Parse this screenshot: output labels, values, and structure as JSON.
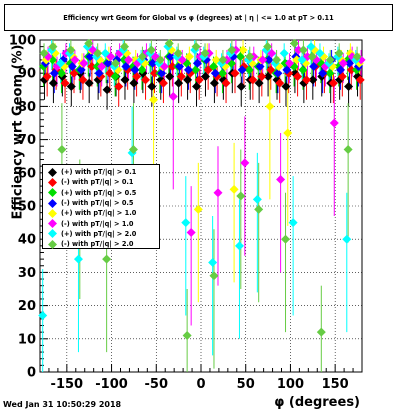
{
  "title": "Efficiency wrt Geom for Global vs φ (degrees) at | η | <= 1.0 at pT > 0.11",
  "footer": "Wed Jan 31 10:50:29 2018",
  "chart_data": {
    "type": "scatter",
    "title": "Efficiency wrt Geom for Global vs φ (degrees) at | η | <= 1.0 at pT > 0.11",
    "xlabel": "φ (degrees)",
    "ylabel": "Efficiency wrt Geom (%)",
    "xlim": [
      -180,
      180
    ],
    "ylim": [
      0,
      100
    ],
    "xticks": [
      -150,
      -100,
      -50,
      0,
      50,
      100,
      150
    ],
    "yticks": [
      0,
      10,
      20,
      30,
      40,
      50,
      60,
      70,
      80,
      90,
      100
    ],
    "grid": true,
    "legend_position": "middle-left",
    "series": [
      {
        "name": "(+) with pT/|q| > 0.1",
        "color": "#000000",
        "marker": "diamond",
        "x": [
          -175,
          -165,
          -155,
          -145,
          -135,
          -125,
          -115,
          -105,
          -95,
          -85,
          -75,
          -65,
          -55,
          -45,
          -35,
          -25,
          -15,
          -5,
          5,
          15,
          25,
          35,
          45,
          55,
          65,
          75,
          85,
          95,
          105,
          115,
          125,
          135,
          145,
          155,
          165,
          175
        ],
        "y": [
          88,
          87,
          89,
          86,
          90,
          87,
          88,
          85,
          89,
          88,
          87,
          90,
          86,
          88,
          89,
          87,
          88,
          86,
          89,
          87,
          88,
          90,
          86,
          88,
          87,
          89,
          88,
          86,
          90,
          87,
          88,
          89,
          87,
          88,
          86,
          89
        ]
      },
      {
        "name": "(-) with pT/|q| > 0.1",
        "color": "#ff0000",
        "marker": "diamond",
        "x": [
          -172,
          -162,
          -152,
          -142,
          -132,
          -122,
          -112,
          -102,
          -92,
          -82,
          -72,
          -62,
          -52,
          -42,
          -32,
          -22,
          -12,
          -2,
          8,
          18,
          28,
          38,
          48,
          58,
          68,
          78,
          88,
          98,
          108,
          118,
          128,
          138,
          148,
          158,
          168,
          178
        ],
        "y": [
          89,
          91,
          87,
          90,
          88,
          92,
          89,
          90,
          86,
          91,
          89,
          88,
          90,
          87,
          92,
          89,
          90,
          88,
          91,
          89,
          87,
          90,
          92,
          88,
          89,
          91,
          87,
          90,
          89,
          88,
          92,
          90,
          87,
          89,
          91,
          88
        ]
      },
      {
        "name": "(+) with pT/|q| > 0.5",
        "color": "#00dd00",
        "marker": "diamond",
        "x": [
          -176,
          -166,
          -156,
          -146,
          -136,
          -126,
          -116,
          -106,
          -96,
          -86,
          -76,
          -66,
          -56,
          -46,
          -36,
          -26,
          -16,
          -6,
          4,
          14,
          24,
          34,
          44,
          54,
          64,
          74,
          84,
          94,
          104,
          114,
          124,
          134,
          144,
          154,
          164,
          174
        ],
        "y": [
          92,
          94,
          90,
          93,
          91,
          95,
          92,
          93,
          89,
          94,
          92,
          91,
          93,
          90,
          95,
          92,
          93,
          91,
          94,
          92,
          90,
          93,
          95,
          91,
          92,
          94,
          90,
          93,
          92,
          91,
          95,
          93,
          90,
          92,
          94,
          91
        ]
      },
      {
        "name": "(-) with pT/|q| > 0.5",
        "color": "#0000ff",
        "marker": "diamond",
        "x": [
          -174,
          -164,
          -154,
          -144,
          -134,
          -124,
          -114,
          -104,
          -94,
          -84,
          -74,
          -64,
          -54,
          -44,
          -34,
          -24,
          -14,
          -4,
          6,
          16,
          26,
          36,
          46,
          56,
          66,
          76,
          86,
          96,
          106,
          116,
          126,
          136,
          146,
          156,
          166,
          176
        ],
        "y": [
          93,
          90,
          94,
          92,
          91,
          95,
          90,
          93,
          94,
          92,
          91,
          94,
          93,
          90,
          95,
          92,
          91,
          93,
          94,
          90,
          92,
          95,
          91,
          93,
          92,
          94,
          90,
          91,
          95,
          93,
          92,
          90,
          94,
          91,
          93,
          92
        ]
      },
      {
        "name": "(+) with pT/|q| > 1.0",
        "color": "#ffff00",
        "marker": "diamond",
        "x": [
          -173,
          -163,
          -153,
          -143,
          -133,
          -123,
          -113,
          -103,
          -93,
          -83,
          -73,
          -63,
          -53,
          -43,
          -33,
          -23,
          -13,
          -3,
          7,
          17,
          27,
          37,
          47,
          57,
          67,
          77,
          87,
          97,
          107,
          117,
          127,
          137,
          147,
          157,
          167,
          177
        ],
        "y": [
          94,
          96,
          92,
          95,
          93,
          97,
          94,
          95,
          91,
          96,
          94,
          93,
          82,
          92,
          97,
          94,
          95,
          49,
          96,
          94,
          92,
          55,
          97,
          93,
          94,
          80,
          92,
          72,
          94,
          93,
          97,
          95,
          92,
          94,
          96,
          93
        ]
      },
      {
        "name": "(-) with pT/|q| > 1.0",
        "color": "#ff00ff",
        "marker": "diamond",
        "x": [
          -171,
          -161,
          -151,
          -141,
          -131,
          -121,
          -111,
          -101,
          -91,
          -81,
          -71,
          -61,
          -51,
          -41,
          -31,
          -21,
          -11,
          -1,
          9,
          19,
          29,
          39,
          49,
          59,
          69,
          79,
          89,
          99,
          109,
          119,
          129,
          139,
          149,
          159,
          169,
          179
        ],
        "y": [
          95,
          92,
          96,
          94,
          93,
          97,
          92,
          95,
          96,
          94,
          93,
          96,
          95,
          92,
          83,
          94,
          42,
          95,
          96,
          54,
          94,
          97,
          63,
          95,
          94,
          96,
          58,
          93,
          97,
          95,
          94,
          92,
          75,
          93,
          95,
          94
        ]
      },
      {
        "name": "(+) with pT/|q| > 2.0",
        "color": "#00ffff",
        "marker": "diamond",
        "x": [
          -177,
          -167,
          -157,
          -147,
          -137,
          -127,
          -117,
          -107,
          -97,
          -87,
          -77,
          -67,
          -57,
          -47,
          -37,
          -27,
          -17,
          -7,
          3,
          13,
          23,
          33,
          43,
          53,
          63,
          73,
          83,
          93,
          103,
          113,
          123,
          133,
          143,
          153,
          163,
          173
        ],
        "y": [
          17,
          97,
          93,
          96,
          34,
          98,
          95,
          96,
          92,
          97,
          66,
          94,
          96,
          93,
          98,
          95,
          45,
          97,
          95,
          33,
          93,
          96,
          38,
          94,
          52,
          97,
          93,
          96,
          45,
          94,
          98,
          96,
          93,
          95,
          40,
          94
        ]
      },
      {
        "name": "(-) with pT/|q| > 2.0",
        "color": "#66cc44",
        "marker": "diamond",
        "x": [
          -175.5,
          -165.5,
          -155.5,
          -145.5,
          -135.5,
          -125.5,
          -115.5,
          -105.5,
          -95.5,
          -85.5,
          -75.5,
          -65.5,
          -55.5,
          -45.5,
          -35.5,
          -25.5,
          -15.5,
          -5.5,
          4.5,
          14.5,
          24.5,
          34.5,
          44.5,
          54.5,
          64.5,
          74.5,
          84.5,
          94.5,
          104.5,
          114.5,
          124.5,
          134.5,
          144.5,
          154.5,
          164.5,
          174.5
        ],
        "y": [
          96,
          98,
          67,
          97,
          50,
          99,
          96,
          34,
          93,
          98,
          67,
          95,
          97,
          94,
          99,
          96,
          11,
          98,
          96,
          29,
          94,
          97,
          53,
          95,
          49,
          98,
          94,
          40,
          99,
          97,
          95,
          12,
          94,
          96,
          67,
          95
        ]
      }
    ]
  }
}
